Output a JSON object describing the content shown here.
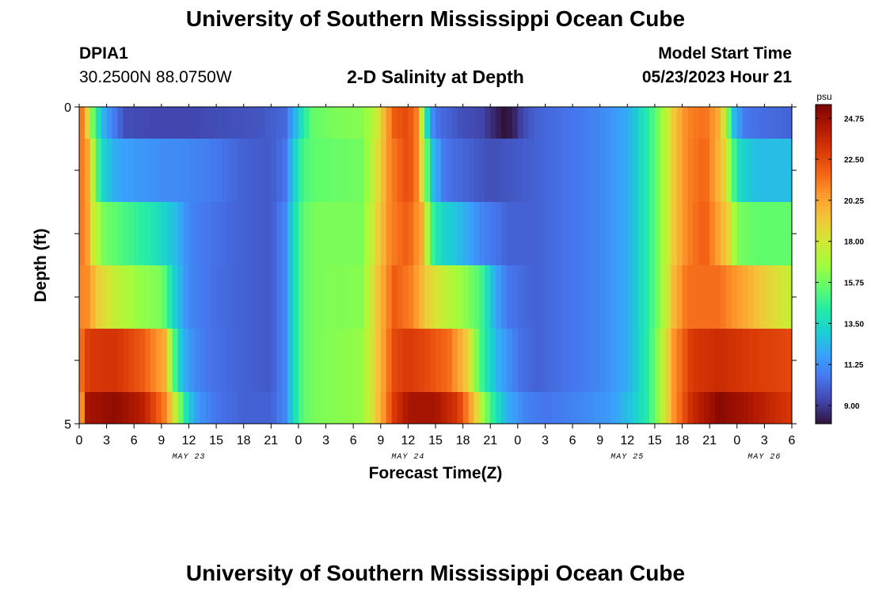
{
  "page": {
    "title": "University of Southern Mississippi Ocean Cube",
    "footer_title": "University of Southern Mississippi Ocean Cube",
    "station_id": "DPIA1",
    "coordinates": "30.2500N  88.0750W",
    "subtitle": "2-D Salinity at Depth",
    "model_start_label": "Model Start Time",
    "model_start_value": "05/23/2023 Hour 21"
  },
  "colors": {
    "scale": [
      "#30123b",
      "#4145ab",
      "#4675ed",
      "#39a2fc",
      "#1bcfd4",
      "#24eca6",
      "#61fc6c",
      "#a4fc3b",
      "#d1e834",
      "#f3c63a",
      "#fe9b2d",
      "#f36315",
      "#d93806",
      "#b11901",
      "#7a0403"
    ]
  },
  "chart_data": {
    "type": "heatmap",
    "title": "2-D Salinity at Depth",
    "xlabel": "Forecast Time(Z)",
    "ylabel": "Depth (ft)",
    "units": "psu",
    "x_hours": [
      0,
      1,
      2,
      3,
      4,
      5,
      6,
      7,
      8,
      9,
      10,
      11,
      12,
      13,
      14,
      15,
      16,
      17,
      18,
      19,
      20,
      21,
      22,
      23,
      24,
      25,
      26,
      27,
      28,
      29,
      30,
      31,
      32,
      33,
      34,
      35,
      36,
      37,
      38,
      39,
      40,
      41,
      42,
      43,
      44,
      45,
      46,
      47,
      48,
      49,
      50,
      51,
      52,
      53,
      54,
      55,
      56,
      57,
      58,
      59,
      60,
      61,
      62,
      63,
      64,
      65,
      66,
      67,
      68,
      69,
      70,
      71,
      72,
      73,
      74,
      75,
      76,
      77,
      78
    ],
    "x_range": [
      0,
      78
    ],
    "y_range": [
      0,
      5
    ],
    "depth_bands": [
      [
        0,
        0.5
      ],
      [
        0.5,
        1.5
      ],
      [
        1.5,
        2.5
      ],
      [
        2.5,
        3.5
      ],
      [
        3.5,
        4.5
      ],
      [
        4.5,
        5
      ]
    ],
    "x_tick_labels": [
      "0",
      "3",
      "6",
      "9",
      "12",
      "15",
      "18",
      "21",
      "0",
      "3",
      "6",
      "9",
      "12",
      "15",
      "18",
      "21",
      "0",
      "3",
      "6",
      "9",
      "12",
      "15",
      "18",
      "21",
      "0",
      "3",
      "6"
    ],
    "x_tick_hours": [
      0,
      3,
      6,
      9,
      12,
      15,
      18,
      21,
      24,
      27,
      30,
      33,
      36,
      39,
      42,
      45,
      48,
      51,
      54,
      57,
      60,
      63,
      66,
      69,
      72,
      75,
      78
    ],
    "date_labels": [
      {
        "label": "MAY 23",
        "hour": 12
      },
      {
        "label": "MAY 24",
        "hour": 36
      },
      {
        "label": "MAY 25",
        "hour": 60
      },
      {
        "label": "MAY 26",
        "hour": 75
      }
    ],
    "y_tick_labels": [
      {
        "label": "0",
        "depth": 0
      },
      {
        "label": "5",
        "depth": 5
      }
    ],
    "y_minor_ticks": [
      1,
      2,
      3,
      4
    ],
    "colorbar": {
      "units": "psu",
      "min": 8.0,
      "max": 25.5,
      "tick_labels": [
        "24.75",
        "22.50",
        "20.25",
        "18.00",
        "15.75",
        "13.50",
        "11.25",
        "9.00"
      ],
      "tick_values": [
        24.75,
        22.5,
        20.25,
        18.0,
        15.75,
        13.5,
        11.25,
        9.0
      ]
    },
    "salinity_profiles": [
      {
        "depth_band": "0-0.5",
        "points": [
          [
            0,
            20
          ],
          [
            0.5,
            22
          ],
          [
            1,
            18
          ],
          [
            1.7,
            15
          ],
          [
            2.5,
            12.5
          ],
          [
            3.5,
            11
          ],
          [
            5,
            9.5
          ],
          [
            8,
            9.3
          ],
          [
            12,
            9.3
          ],
          [
            16,
            9.5
          ],
          [
            20,
            9.7
          ],
          [
            22.5,
            10.2
          ],
          [
            23.5,
            12
          ],
          [
            24.5,
            14
          ],
          [
            25.5,
            15.5
          ],
          [
            28,
            16
          ],
          [
            31,
            16.2
          ],
          [
            32.5,
            17.5
          ],
          [
            33.5,
            20
          ],
          [
            34.5,
            22
          ],
          [
            36,
            22.5
          ],
          [
            37,
            21
          ],
          [
            37.7,
            16
          ],
          [
            38.3,
            12
          ],
          [
            39,
            10.5
          ],
          [
            42,
            9.5
          ],
          [
            44,
            9.3
          ],
          [
            45.5,
            8.5
          ],
          [
            46.5,
            8.0
          ],
          [
            47.5,
            8.3
          ],
          [
            48.5,
            9.3
          ],
          [
            50,
            10
          ],
          [
            54,
            10.5
          ],
          [
            57,
            11
          ],
          [
            60,
            12
          ],
          [
            62,
            14
          ],
          [
            63.5,
            16
          ],
          [
            65,
            19
          ],
          [
            66.5,
            21
          ],
          [
            68.5,
            21.5
          ],
          [
            70,
            20
          ],
          [
            70.6,
            18
          ],
          [
            71.2,
            15
          ],
          [
            71.8,
            12
          ],
          [
            73,
            10.5
          ],
          [
            78,
            10
          ]
        ]
      },
      {
        "depth_band": "0.5-1.5",
        "points": [
          [
            0,
            20
          ],
          [
            0.5,
            22
          ],
          [
            1.2,
            19
          ],
          [
            2,
            15
          ],
          [
            2.8,
            13
          ],
          [
            4,
            12
          ],
          [
            6,
            11.5
          ],
          [
            9,
            11.2
          ],
          [
            12,
            11
          ],
          [
            15,
            10.6
          ],
          [
            18,
            10
          ],
          [
            21,
            9.8
          ],
          [
            22.5,
            10.5
          ],
          [
            23.5,
            13
          ],
          [
            24.5,
            15
          ],
          [
            26,
            15.5
          ],
          [
            31,
            15.8
          ],
          [
            32.5,
            18
          ],
          [
            34,
            21
          ],
          [
            36,
            22.5
          ],
          [
            37,
            21
          ],
          [
            37.8,
            17
          ],
          [
            38.5,
            13
          ],
          [
            40,
            10.5
          ],
          [
            45,
            9.5
          ],
          [
            50,
            10
          ],
          [
            54,
            10.5
          ],
          [
            57,
            11
          ],
          [
            60,
            12
          ],
          [
            62,
            14
          ],
          [
            63.5,
            16
          ],
          [
            65,
            19
          ],
          [
            66.5,
            21
          ],
          [
            68.5,
            21.8
          ],
          [
            70.5,
            19
          ],
          [
            71.3,
            16
          ],
          [
            72.2,
            13.5
          ],
          [
            74,
            12.5
          ],
          [
            78,
            12.5
          ]
        ]
      },
      {
        "depth_band": "1.5-2.5",
        "points": [
          [
            0,
            20
          ],
          [
            0.5,
            22
          ],
          [
            1.5,
            18
          ],
          [
            2.5,
            16
          ],
          [
            5,
            15
          ],
          [
            8,
            14
          ],
          [
            10.5,
            12.5
          ],
          [
            12,
            11
          ],
          [
            14,
            10.5
          ],
          [
            18,
            10
          ],
          [
            21,
            9.8
          ],
          [
            22.5,
            11
          ],
          [
            23.5,
            13.5
          ],
          [
            24.5,
            15.5
          ],
          [
            26,
            16
          ],
          [
            31,
            16
          ],
          [
            32.5,
            18.5
          ],
          [
            34,
            21
          ],
          [
            36,
            22
          ],
          [
            37.5,
            20
          ],
          [
            38.5,
            15
          ],
          [
            39.5,
            13.5
          ],
          [
            41.5,
            12.5
          ],
          [
            44,
            11
          ],
          [
            47,
            10
          ],
          [
            50,
            10
          ],
          [
            54,
            10.5
          ],
          [
            57,
            11
          ],
          [
            60,
            12
          ],
          [
            62,
            14
          ],
          [
            63.5,
            16
          ],
          [
            65,
            19
          ],
          [
            66.5,
            21
          ],
          [
            68.5,
            22
          ],
          [
            71,
            19
          ],
          [
            72,
            16
          ],
          [
            74,
            15.5
          ],
          [
            78,
            15.5
          ]
        ]
      },
      {
        "depth_band": "2.5-3.5",
        "points": [
          [
            0,
            20
          ],
          [
            0.5,
            21.5
          ],
          [
            2,
            19
          ],
          [
            4,
            17.5
          ],
          [
            6.5,
            16.5
          ],
          [
            9,
            16
          ],
          [
            10.5,
            13
          ],
          [
            12,
            11
          ],
          [
            15,
            10.3
          ],
          [
            18,
            10
          ],
          [
            21,
            9.8
          ],
          [
            22.5,
            11
          ],
          [
            23.5,
            13.5
          ],
          [
            24.5,
            15.5
          ],
          [
            26,
            16
          ],
          [
            31,
            16.2
          ],
          [
            32.5,
            19
          ],
          [
            34.5,
            22
          ],
          [
            36.5,
            21
          ],
          [
            38,
            19
          ],
          [
            40,
            17.5
          ],
          [
            42,
            16.5
          ],
          [
            44,
            15
          ],
          [
            45.5,
            12
          ],
          [
            47,
            10.5
          ],
          [
            50,
            10
          ],
          [
            54,
            10.5
          ],
          [
            57,
            11
          ],
          [
            60,
            12
          ],
          [
            62,
            14
          ],
          [
            63.5,
            16
          ],
          [
            65,
            19.5
          ],
          [
            66.5,
            21.5
          ],
          [
            70,
            21.5
          ],
          [
            73,
            20
          ],
          [
            75,
            19
          ],
          [
            77,
            18
          ],
          [
            78,
            17.5
          ]
        ]
      },
      {
        "depth_band": "3.5-4.5",
        "points": [
          [
            0,
            21
          ],
          [
            1,
            23
          ],
          [
            4,
            23.2
          ],
          [
            7,
            22
          ],
          [
            9.3,
            20
          ],
          [
            10.2,
            16
          ],
          [
            11,
            13
          ],
          [
            12,
            11.5
          ],
          [
            14,
            10.5
          ],
          [
            18,
            10
          ],
          [
            21,
            9.8
          ],
          [
            22.5,
            11
          ],
          [
            23.5,
            13.5
          ],
          [
            24.5,
            15.5
          ],
          [
            26,
            16
          ],
          [
            31,
            16.5
          ],
          [
            32.5,
            19
          ],
          [
            34.5,
            22.5
          ],
          [
            36,
            23
          ],
          [
            38,
            22.5
          ],
          [
            40.5,
            21.5
          ],
          [
            42.5,
            19
          ],
          [
            43.5,
            16
          ],
          [
            44.5,
            14
          ],
          [
            46,
            12
          ],
          [
            48,
            10.5
          ],
          [
            50,
            10
          ],
          [
            54,
            10.5
          ],
          [
            57,
            11
          ],
          [
            60,
            12
          ],
          [
            62,
            14
          ],
          [
            63.5,
            16.5
          ],
          [
            65,
            20.5
          ],
          [
            67,
            23
          ],
          [
            70,
            23.5
          ],
          [
            73,
            23
          ],
          [
            78,
            22.5
          ]
        ]
      },
      {
        "depth_band": "4.5-5",
        "points": [
          [
            0,
            9.5
          ],
          [
            0.4,
            24.5
          ],
          [
            4,
            25
          ],
          [
            7,
            24
          ],
          [
            9.5,
            21
          ],
          [
            11,
            16
          ],
          [
            12,
            13
          ],
          [
            13,
            11.5
          ],
          [
            15,
            10.5
          ],
          [
            18,
            10
          ],
          [
            21,
            10
          ],
          [
            22.5,
            11
          ],
          [
            23.5,
            13.5
          ],
          [
            24.5,
            15.5
          ],
          [
            26,
            16
          ],
          [
            31,
            16.5
          ],
          [
            32.5,
            19
          ],
          [
            34.5,
            23
          ],
          [
            36,
            24.5
          ],
          [
            39,
            24.5
          ],
          [
            41.5,
            23
          ],
          [
            43,
            20
          ],
          [
            44.5,
            16
          ],
          [
            45.5,
            14
          ],
          [
            47,
            12
          ],
          [
            49,
            10.8
          ],
          [
            51,
            10.5
          ],
          [
            55,
            11
          ],
          [
            58,
            11.5
          ],
          [
            60,
            12.5
          ],
          [
            62,
            14
          ],
          [
            63.5,
            16.5
          ],
          [
            65,
            20.5
          ],
          [
            67,
            23.5
          ],
          [
            70,
            25.2
          ],
          [
            73,
            24.5
          ],
          [
            78,
            23
          ]
        ]
      }
    ]
  }
}
